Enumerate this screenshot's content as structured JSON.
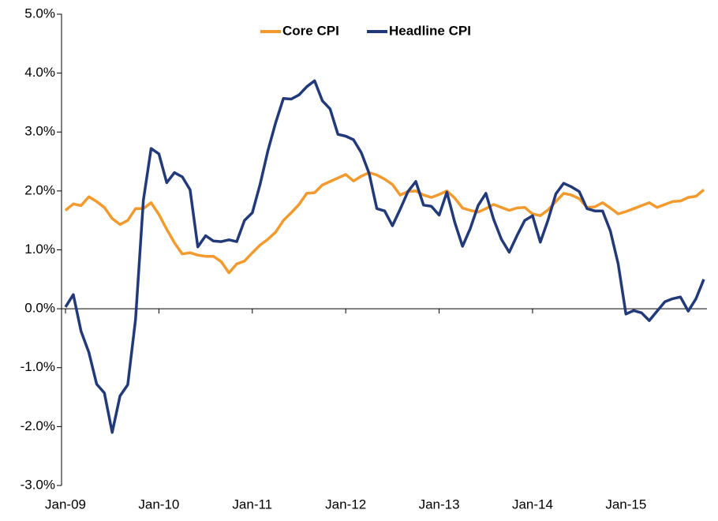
{
  "chart_data": {
    "type": "line",
    "categories": [
      "Jan-09",
      null,
      null,
      null,
      null,
      null,
      null,
      null,
      null,
      null,
      null,
      null,
      "Jan-10",
      null,
      null,
      null,
      null,
      null,
      null,
      null,
      null,
      null,
      null,
      null,
      "Jan-11",
      null,
      null,
      null,
      null,
      null,
      null,
      null,
      null,
      null,
      null,
      null,
      "Jan-12",
      null,
      null,
      null,
      null,
      null,
      null,
      null,
      null,
      null,
      null,
      null,
      "Jan-13",
      null,
      null,
      null,
      null,
      null,
      null,
      null,
      null,
      null,
      null,
      null,
      "Jan-14",
      null,
      null,
      null,
      null,
      null,
      null,
      null,
      null,
      null,
      null,
      null,
      "Jan-15",
      null,
      null,
      null,
      null,
      null,
      null,
      null,
      null,
      null,
      null
    ],
    "series": [
      {
        "name": "Core CPI",
        "color": "#f39a2e",
        "values": [
          1.67,
          1.78,
          1.75,
          1.9,
          1.82,
          1.72,
          1.53,
          1.43,
          1.5,
          1.7,
          1.7,
          1.8,
          1.6,
          1.35,
          1.12,
          0.93,
          0.95,
          0.91,
          0.89,
          0.89,
          0.8,
          0.61,
          0.76,
          0.81,
          0.95,
          1.08,
          1.18,
          1.3,
          1.5,
          1.63,
          1.77,
          1.96,
          1.97,
          2.1,
          2.16,
          2.22,
          2.28,
          2.17,
          2.25,
          2.31,
          2.27,
          2.2,
          2.11,
          1.93,
          1.99,
          2.0,
          1.93,
          1.89,
          1.94,
          2.0,
          1.88,
          1.71,
          1.67,
          1.64,
          1.7,
          1.77,
          1.72,
          1.67,
          1.71,
          1.72,
          1.61,
          1.58,
          1.68,
          1.82,
          1.96,
          1.93,
          1.87,
          1.72,
          1.73,
          1.8,
          1.71,
          1.61,
          1.65,
          1.7,
          1.75,
          1.8,
          1.72,
          1.77,
          1.82,
          1.83,
          1.89,
          1.91,
          2.02
        ]
      },
      {
        "name": "Headline CPI",
        "color": "#233a7a",
        "values": [
          0.03,
          0.24,
          -0.38,
          -0.74,
          -1.28,
          -1.43,
          -2.1,
          -1.48,
          -1.29,
          -0.18,
          1.84,
          2.72,
          2.63,
          2.14,
          2.31,
          2.24,
          2.02,
          1.05,
          1.24,
          1.15,
          1.14,
          1.17,
          1.14,
          1.5,
          1.63,
          2.11,
          2.68,
          3.16,
          3.57,
          3.56,
          3.63,
          3.77,
          3.87,
          3.53,
          3.39,
          2.96,
          2.93,
          2.87,
          2.65,
          2.3,
          1.7,
          1.66,
          1.41,
          1.69,
          1.99,
          2.16,
          1.76,
          1.74,
          1.59,
          1.98,
          1.47,
          1.06,
          1.36,
          1.75,
          1.96,
          1.52,
          1.18,
          0.96,
          1.24,
          1.5,
          1.58,
          1.13,
          1.51,
          1.95,
          2.13,
          2.07,
          1.99,
          1.7,
          1.66,
          1.66,
          1.32,
          0.76,
          -0.09,
          -0.03,
          -0.07,
          -0.2,
          -0.04,
          0.12,
          0.17,
          0.2,
          -0.04,
          0.17,
          0.5
        ]
      }
    ],
    "ylim": [
      -3,
      5
    ],
    "yticks": [
      {
        "value": -3,
        "label": "-3.0%"
      },
      {
        "value": -2,
        "label": "-2.0%"
      },
      {
        "value": -1,
        "label": "-1.0%"
      },
      {
        "value": 0,
        "label": "0.0%"
      },
      {
        "value": 1,
        "label": "1.0%"
      },
      {
        "value": 2,
        "label": "2.0%"
      },
      {
        "value": 3,
        "label": "3.0%"
      },
      {
        "value": 4,
        "label": "4.0%"
      },
      {
        "value": 5,
        "label": "5.0%"
      }
    ],
    "grid": false,
    "legend": "top"
  }
}
